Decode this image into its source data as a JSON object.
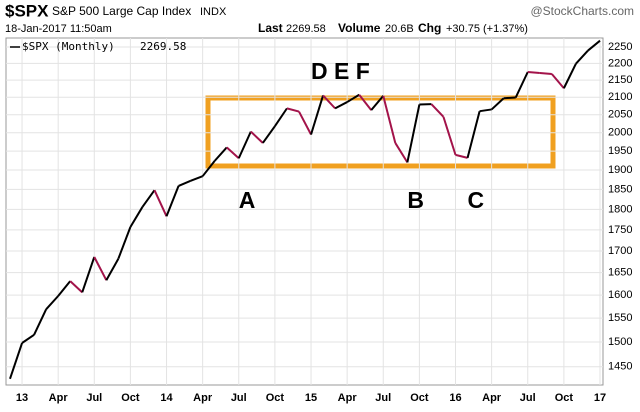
{
  "chart_data": {
    "type": "line",
    "header": {
      "symbol": "$SPX",
      "name": "S&P 500 Large Cap Index",
      "exchange": "INDX",
      "source": "@StockCharts.com",
      "date": "18-Jan-2017 11:50am",
      "last_label": "Last",
      "last": "2269.58",
      "volume_label": "Volume",
      "volume": "20.6B",
      "chg_label": "Chg",
      "chg": "+30.75 (+1.37%)"
    },
    "categories": [
      null,
      "13",
      null,
      null,
      "Apr",
      null,
      null,
      "Jul",
      null,
      null,
      "Oct",
      null,
      null,
      "14",
      null,
      null,
      "Apr",
      null,
      null,
      "Jul",
      null,
      null,
      "Oct",
      null,
      null,
      "15",
      null,
      null,
      "Apr",
      null,
      null,
      "Jul",
      null,
      null,
      "Oct",
      null,
      null,
      "16",
      null,
      null,
      "Apr",
      null,
      null,
      "Jul",
      null,
      null,
      "Oct",
      null,
      null,
      "17"
    ],
    "series": [
      {
        "name": "$SPX (Monthly)",
        "color": "#000000",
        "down_color": "#a3134a",
        "values": [
          1426,
          1498,
          1515,
          1569,
          1598,
          1631,
          1606,
          1686,
          1633,
          1682,
          1757,
          1806,
          1848,
          1783,
          1859,
          1872,
          1884,
          1924,
          1960,
          1931,
          2003,
          1972,
          2018,
          2068,
          2059,
          1995,
          2105,
          2068,
          2086,
          2107,
          2063,
          2104,
          1972,
          1920,
          2079,
          2080,
          2044,
          1940,
          1932,
          2060,
          2065,
          2097,
          2099,
          2174,
          2171,
          2168,
          2126,
          2199,
          2239,
          2269.58
        ]
      }
    ],
    "ylim": [
      1414,
      2278
    ],
    "yticks": [
      1450,
      1500,
      1550,
      1600,
      1650,
      1700,
      1750,
      1800,
      1850,
      1900,
      1950,
      2000,
      2050,
      2100,
      2150,
      2200,
      2250
    ],
    "log_scale": true,
    "grid": true,
    "annotations": [
      {
        "text": "D E F",
        "index": 25
      },
      {
        "text": "A",
        "index": 19
      },
      {
        "text": "B",
        "index": 33
      },
      {
        "text": "C",
        "index": 38
      }
    ]
  }
}
